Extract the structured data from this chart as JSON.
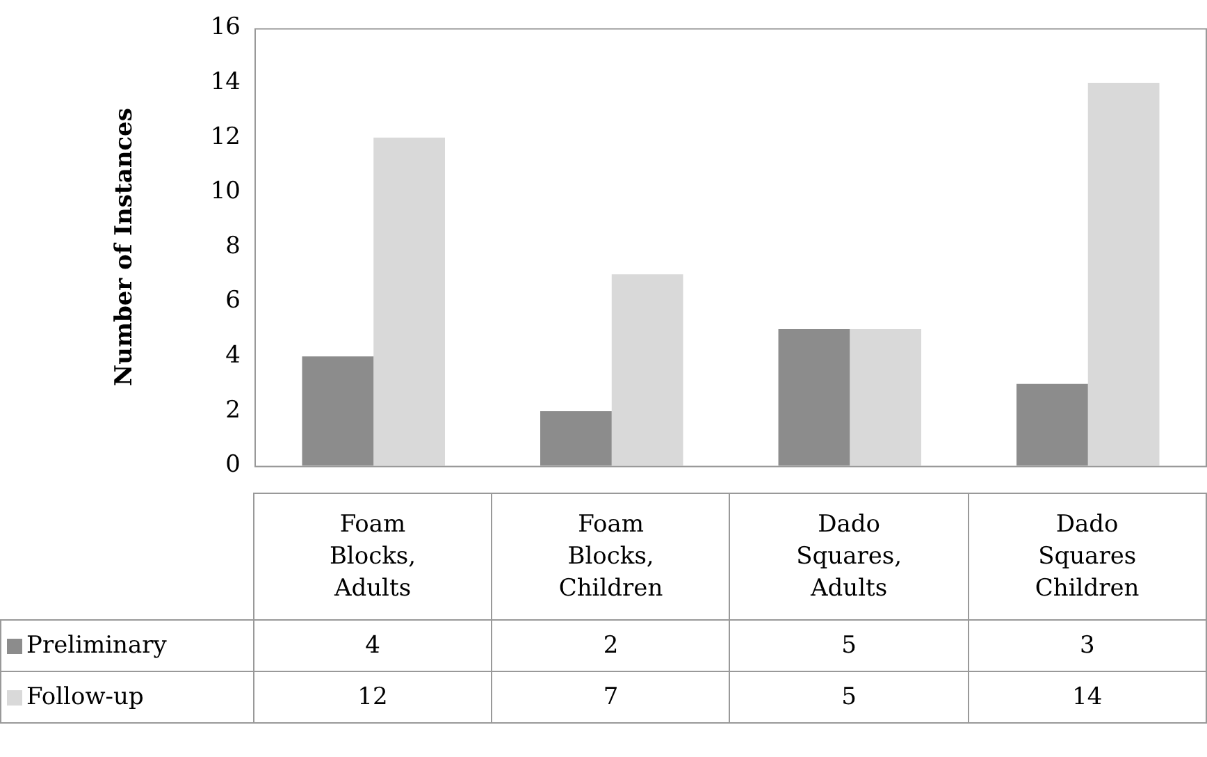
{
  "chart_data": {
    "type": "bar",
    "ylabel": "Number of Instances",
    "categories": [
      "Foam Blocks, Adults",
      "Foam Blocks, Children",
      "Dado Squares, Adults",
      "Dado Squares Children"
    ],
    "series": [
      {
        "name": "Preliminary",
        "color": "#8c8c8c",
        "values": [
          4,
          2,
          5,
          3
        ]
      },
      {
        "name": "Follow-up",
        "color": "#d9d9d9",
        "values": [
          12,
          7,
          5,
          14
        ]
      }
    ],
    "ylim": [
      0,
      16
    ],
    "yticks": [
      0,
      2,
      4,
      6,
      8,
      10,
      12,
      14,
      16
    ],
    "grid": false,
    "legend": "bottom",
    "data_labels": true
  }
}
